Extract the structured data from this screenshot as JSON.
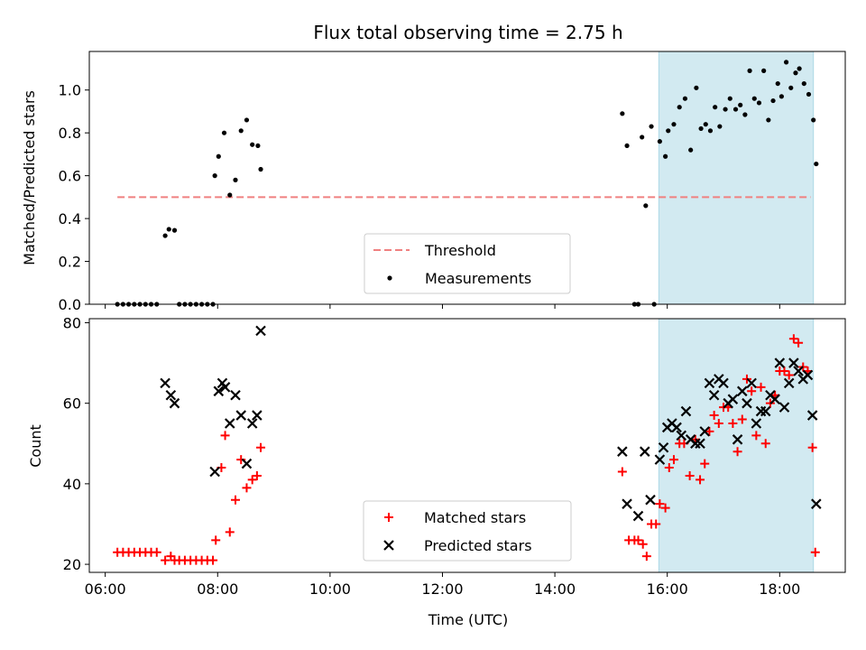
{
  "chart_data": [
    {
      "type": "scatter",
      "title": "Flux total observing time = 2.75 h",
      "ylabel": "Matched/Predicted stars",
      "xlim": [
        "05:43",
        "19:10"
      ],
      "ylim": [
        0,
        1.18
      ],
      "yticks": [
        "0.0",
        "0.2",
        "0.4",
        "0.6",
        "0.8",
        "1.0"
      ],
      "grid": false,
      "legend_position": "lower-center",
      "shaded_region": {
        "start": "15:51",
        "end": "18:36",
        "color": "#add8e6"
      },
      "threshold": {
        "name": "Threshold",
        "value": 0.5,
        "start": "06:13",
        "end": "18:33",
        "color": "#f08080",
        "style": "dashed"
      },
      "series": [
        {
          "name": "Measurements",
          "marker": "dot",
          "color": "#000000",
          "points": [
            [
              "06:13",
              0.0
            ],
            [
              "06:19",
              0.0
            ],
            [
              "06:25",
              0.0
            ],
            [
              "06:31",
              0.0
            ],
            [
              "06:37",
              0.0
            ],
            [
              "06:43",
              0.0
            ],
            [
              "06:49",
              0.0
            ],
            [
              "06:55",
              0.0
            ],
            [
              "07:04",
              0.32
            ],
            [
              "07:08",
              0.35
            ],
            [
              "07:14",
              0.345
            ],
            [
              "07:19",
              0.0
            ],
            [
              "07:25",
              0.0
            ],
            [
              "07:31",
              0.0
            ],
            [
              "07:37",
              0.0
            ],
            [
              "07:43",
              0.0
            ],
            [
              "07:49",
              0.0
            ],
            [
              "07:55",
              0.0
            ],
            [
              "07:57",
              0.6
            ],
            [
              "08:01",
              0.69
            ],
            [
              "08:07",
              0.8
            ],
            [
              "08:13",
              0.51
            ],
            [
              "08:19",
              0.58
            ],
            [
              "08:25",
              0.81
            ],
            [
              "08:31",
              0.86
            ],
            [
              "08:37",
              0.745
            ],
            [
              "08:43",
              0.74
            ],
            [
              "08:46",
              0.63
            ],
            [
              "15:12",
              0.89
            ],
            [
              "15:17",
              0.74
            ],
            [
              "15:25",
              0.0
            ],
            [
              "15:29",
              0.0
            ],
            [
              "15:33",
              0.78
            ],
            [
              "15:37",
              0.46
            ],
            [
              "15:43",
              0.83
            ],
            [
              "15:46",
              0.0
            ],
            [
              "15:52",
              0.76
            ],
            [
              "15:58",
              0.69
            ],
            [
              "16:01",
              0.81
            ],
            [
              "16:07",
              0.84
            ],
            [
              "16:13",
              0.92
            ],
            [
              "16:19",
              0.96
            ],
            [
              "16:25",
              0.72
            ],
            [
              "16:31",
              1.01
            ],
            [
              "16:36",
              0.82
            ],
            [
              "16:41",
              0.84
            ],
            [
              "16:46",
              0.81
            ],
            [
              "16:51",
              0.92
            ],
            [
              "16:56",
              0.83
            ],
            [
              "17:02",
              0.91
            ],
            [
              "17:07",
              0.96
            ],
            [
              "17:13",
              0.91
            ],
            [
              "17:18",
              0.93
            ],
            [
              "17:23",
              0.885
            ],
            [
              "17:28",
              1.09
            ],
            [
              "17:33",
              0.96
            ],
            [
              "17:38",
              0.94
            ],
            [
              "17:43",
              1.09
            ],
            [
              "17:48",
              0.86
            ],
            [
              "17:53",
              0.95
            ],
            [
              "17:58",
              1.03
            ],
            [
              "18:02",
              0.97
            ],
            [
              "18:07",
              1.13
            ],
            [
              "18:12",
              1.01
            ],
            [
              "18:17",
              1.08
            ],
            [
              "18:21",
              1.1
            ],
            [
              "18:26",
              1.03
            ],
            [
              "18:31",
              0.98
            ],
            [
              "18:36",
              0.86
            ],
            [
              "18:39",
              0.655
            ]
          ]
        }
      ]
    },
    {
      "type": "scatter",
      "xlabel": "Time (UTC)",
      "ylabel": "Count",
      "xlim": [
        "05:43",
        "19:10"
      ],
      "ylim": [
        18,
        81
      ],
      "xticks": [
        "06:00",
        "08:00",
        "10:00",
        "12:00",
        "14:00",
        "16:00",
        "18:00"
      ],
      "yticks": [
        "20",
        "40",
        "60",
        "80"
      ],
      "grid": false,
      "legend_position": "lower-center",
      "shaded_region": {
        "start": "15:51",
        "end": "18:36",
        "color": "#add8e6"
      },
      "series": [
        {
          "name": "Matched stars",
          "marker": "plus",
          "color": "#ff0000",
          "points": [
            [
              "06:13",
              23
            ],
            [
              "06:19",
              23
            ],
            [
              "06:25",
              23
            ],
            [
              "06:31",
              23
            ],
            [
              "06:37",
              23
            ],
            [
              "06:43",
              23
            ],
            [
              "06:49",
              23
            ],
            [
              "06:55",
              23
            ],
            [
              "07:04",
              21
            ],
            [
              "07:10",
              22
            ],
            [
              "07:14",
              21
            ],
            [
              "07:19",
              21
            ],
            [
              "07:25",
              21
            ],
            [
              "07:31",
              21
            ],
            [
              "07:37",
              21
            ],
            [
              "07:43",
              21
            ],
            [
              "07:49",
              21
            ],
            [
              "07:55",
              21
            ],
            [
              "07:58",
              26
            ],
            [
              "08:04",
              44
            ],
            [
              "08:08",
              52
            ],
            [
              "08:13",
              28
            ],
            [
              "08:19",
              36
            ],
            [
              "08:25",
              46
            ],
            [
              "08:31",
              39
            ],
            [
              "08:37",
              41
            ],
            [
              "08:42",
              42
            ],
            [
              "08:46",
              49
            ],
            [
              "15:12",
              43
            ],
            [
              "15:19",
              26
            ],
            [
              "15:25",
              26
            ],
            [
              "15:29",
              26
            ],
            [
              "15:34",
              25
            ],
            [
              "15:38",
              22
            ],
            [
              "15:43",
              30
            ],
            [
              "15:48",
              30
            ],
            [
              "15:52",
              35
            ],
            [
              "15:58",
              34
            ],
            [
              "16:02",
              44
            ],
            [
              "16:07",
              46
            ],
            [
              "16:13",
              50
            ],
            [
              "16:18",
              50
            ],
            [
              "16:24",
              42
            ],
            [
              "16:30",
              51
            ],
            [
              "16:35",
              41
            ],
            [
              "16:40",
              45
            ],
            [
              "16:45",
              53
            ],
            [
              "16:50",
              57
            ],
            [
              "16:55",
              55
            ],
            [
              "17:00",
              59
            ],
            [
              "17:05",
              59
            ],
            [
              "17:10",
              55
            ],
            [
              "17:15",
              48
            ],
            [
              "17:20",
              56
            ],
            [
              "17:25",
              66
            ],
            [
              "17:30",
              63
            ],
            [
              "17:35",
              52
            ],
            [
              "17:40",
              64
            ],
            [
              "17:45",
              50
            ],
            [
              "17:50",
              60
            ],
            [
              "17:55",
              62
            ],
            [
              "18:00",
              68
            ],
            [
              "18:05",
              68
            ],
            [
              "18:10",
              67
            ],
            [
              "18:15",
              76
            ],
            [
              "18:20",
              75
            ],
            [
              "18:25",
              69
            ],
            [
              "18:30",
              68
            ],
            [
              "18:35",
              49
            ],
            [
              "18:38",
              23
            ]
          ]
        },
        {
          "name": "Predicted stars",
          "marker": "x",
          "color": "#000000",
          "points": [
            [
              "07:04",
              65
            ],
            [
              "07:10",
              62
            ],
            [
              "07:14",
              60
            ],
            [
              "07:57",
              43
            ],
            [
              "08:01",
              63
            ],
            [
              "08:05",
              65
            ],
            [
              "08:08",
              64
            ],
            [
              "08:13",
              55
            ],
            [
              "08:19",
              62
            ],
            [
              "08:25",
              57
            ],
            [
              "08:31",
              45
            ],
            [
              "08:37",
              55
            ],
            [
              "08:42",
              57
            ],
            [
              "08:46",
              78
            ],
            [
              "15:12",
              48
            ],
            [
              "15:17",
              35
            ],
            [
              "15:29",
              32
            ],
            [
              "15:36",
              48
            ],
            [
              "15:42",
              36
            ],
            [
              "15:52",
              46
            ],
            [
              "15:56",
              49
            ],
            [
              "16:00",
              54
            ],
            [
              "16:05",
              55
            ],
            [
              "16:10",
              54
            ],
            [
              "16:15",
              52
            ],
            [
              "16:20",
              58
            ],
            [
              "16:25",
              51
            ],
            [
              "16:30",
              50
            ],
            [
              "16:35",
              50
            ],
            [
              "16:40",
              53
            ],
            [
              "16:45",
              65
            ],
            [
              "16:50",
              62
            ],
            [
              "16:55",
              66
            ],
            [
              "17:00",
              65
            ],
            [
              "17:05",
              60
            ],
            [
              "17:10",
              61
            ],
            [
              "17:15",
              51
            ],
            [
              "17:20",
              63
            ],
            [
              "17:25",
              60
            ],
            [
              "17:30",
              65
            ],
            [
              "17:35",
              55
            ],
            [
              "17:40",
              58
            ],
            [
              "17:45",
              58
            ],
            [
              "17:50",
              62
            ],
            [
              "17:55",
              61
            ],
            [
              "18:00",
              70
            ],
            [
              "18:05",
              59
            ],
            [
              "18:10",
              65
            ],
            [
              "18:15",
              70
            ],
            [
              "18:20",
              68
            ],
            [
              "18:25",
              66
            ],
            [
              "18:30",
              67
            ],
            [
              "18:35",
              57
            ],
            [
              "18:39",
              35
            ]
          ]
        }
      ]
    }
  ]
}
